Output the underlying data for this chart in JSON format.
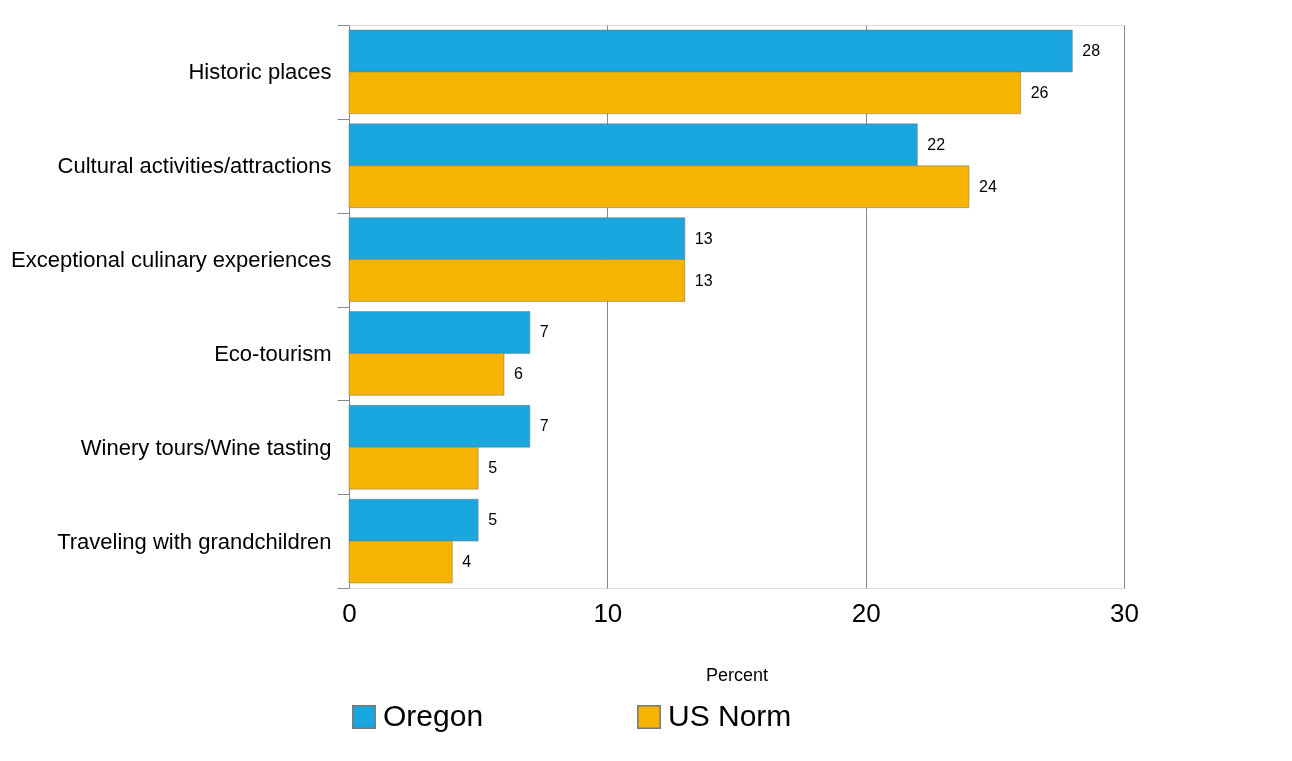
{
  "chart_data": {
    "type": "bar",
    "orientation": "horizontal",
    "xlabel": "Percent",
    "categories": [
      "Historic places",
      "Cultural activities/attractions",
      "Exceptional culinary experiences",
      "Eco-tourism",
      "Winery tours/Wine tasting",
      "Traveling with grandchildren"
    ],
    "series": [
      {
        "name": "Oregon",
        "color": "#1aa6df",
        "values": [
          28,
          22,
          13,
          7,
          7,
          5
        ]
      },
      {
        "name": "US Norm",
        "color": "#f4b400",
        "values": [
          26,
          24,
          13,
          6,
          5,
          4
        ]
      }
    ],
    "xlim": [
      0,
      30
    ],
    "xticks": [
      0,
      10,
      20,
      30
    ],
    "grid": "x",
    "legend": "bottom",
    "data_labels": true
  }
}
